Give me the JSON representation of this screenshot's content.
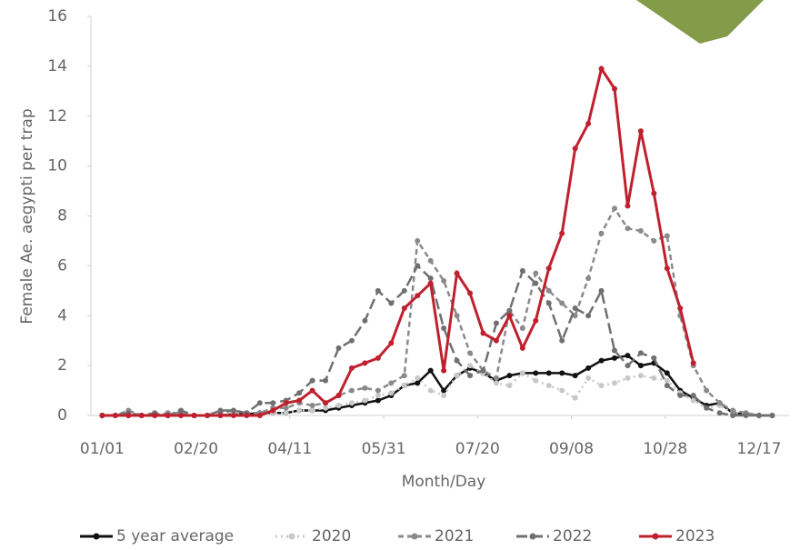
{
  "chart_data": {
    "type": "line",
    "x_label": "Month/Day",
    "y_label": "Female Ae. aegypti per trap",
    "x": [
      0,
      7,
      14,
      21,
      28,
      35,
      42,
      49,
      56,
      63,
      70,
      77,
      84,
      91,
      98,
      105,
      112,
      119,
      126,
      133,
      140,
      147,
      154,
      161,
      168,
      175,
      182,
      189,
      196,
      203,
      210,
      217,
      224,
      231,
      238,
      245,
      252,
      259,
      266,
      273,
      280,
      287,
      294,
      301,
      308,
      315,
      322,
      329,
      336,
      343,
      350,
      357
    ],
    "xlim": [
      -6,
      366
    ],
    "xticks": [
      {
        "value": 0,
        "label": "01/01"
      },
      {
        "value": 50,
        "label": "02/20"
      },
      {
        "value": 100,
        "label": "04/11"
      },
      {
        "value": 150,
        "label": "05/31"
      },
      {
        "value": 200,
        "label": "07/20"
      },
      {
        "value": 250,
        "label": "09/08"
      },
      {
        "value": 300,
        "label": "10/28"
      },
      {
        "value": 350,
        "label": "12/17"
      }
    ],
    "ylim": [
      0,
      16
    ],
    "yticks": [
      0,
      2,
      4,
      6,
      8,
      10,
      12,
      14,
      16
    ],
    "grid": false,
    "legend": "bottom",
    "series": [
      {
        "name": "5 year average",
        "color": "#111111",
        "dash": "solid",
        "values": [
          0,
          0,
          0,
          0,
          0,
          0,
          0,
          0,
          0,
          0,
          0.05,
          0.05,
          0.1,
          0.1,
          0.1,
          0.2,
          0.2,
          0.2,
          0.3,
          0.4,
          0.5,
          0.6,
          0.8,
          1.2,
          1.3,
          1.8,
          1.0,
          1.6,
          1.9,
          1.7,
          1.4,
          1.6,
          1.7,
          1.7,
          1.7,
          1.7,
          1.6,
          1.9,
          2.2,
          2.3,
          2.4,
          2.0,
          2.1,
          1.7,
          1.0,
          0.7,
          0.4,
          0.5,
          0.1,
          0.05,
          0,
          0
        ]
      },
      {
        "name": "2020",
        "color": "#c8c8c8",
        "dash": "dotted",
        "values": [
          0,
          0,
          0.1,
          0,
          0,
          0.1,
          0.1,
          0,
          0,
          0.1,
          0.1,
          0.1,
          0.1,
          0.1,
          0.1,
          0.2,
          0.2,
          0.3,
          0.4,
          0.5,
          0.6,
          0.8,
          0.9,
          1.2,
          1.5,
          1.0,
          0.8,
          1.6,
          2.0,
          1.7,
          1.3,
          1.2,
          1.7,
          1.4,
          1.2,
          1.0,
          0.7,
          1.5,
          1.2,
          1.3,
          1.5,
          1.6,
          1.5,
          1.4,
          0.9,
          0.6,
          0.3,
          0.4,
          0.1,
          0.1,
          0,
          0
        ]
      },
      {
        "name": "2021",
        "color": "#8a8a8a",
        "dash": "dashed",
        "values": [
          0,
          0,
          0.2,
          0,
          0,
          0.1,
          0.1,
          0,
          0,
          0.1,
          0.2,
          0.1,
          0.1,
          0.3,
          0.3,
          0.5,
          0.4,
          0.5,
          0.8,
          1.0,
          1.1,
          1.0,
          1.3,
          1.6,
          7.0,
          6.2,
          5.4,
          4.0,
          2.5,
          1.8,
          1.5,
          4.2,
          3.5,
          5.7,
          5.0,
          4.5,
          4.0,
          5.5,
          7.3,
          8.3,
          7.5,
          7.4,
          7.0,
          7.2,
          4.0,
          2.0,
          1.0,
          0.5,
          0.2,
          0.1,
          0,
          0
        ]
      },
      {
        "name": "2022",
        "color": "#707070",
        "dash": "longdash",
        "values": [
          0,
          0,
          0.1,
          0,
          0.1,
          0,
          0.2,
          0,
          0,
          0.2,
          0.2,
          0.1,
          0.5,
          0.5,
          0.6,
          0.9,
          1.4,
          1.4,
          2.7,
          3.0,
          3.8,
          5.0,
          4.5,
          5.0,
          6.0,
          5.5,
          3.5,
          2.2,
          1.6,
          1.8,
          3.7,
          4.2,
          5.8,
          5.3,
          4.5,
          3.0,
          4.3,
          4.0,
          5.0,
          2.6,
          2.0,
          2.5,
          2.3,
          1.2,
          0.8,
          0.8,
          0.3,
          0.1,
          0,
          0,
          0,
          0
        ]
      },
      {
        "name": "2023",
        "color": "#c0202e",
        "dash": "solid",
        "values": [
          0,
          0,
          0,
          0,
          0,
          0,
          0,
          0,
          0,
          0,
          0,
          0,
          0,
          0.2,
          0.5,
          0.6,
          1.0,
          0.5,
          0.8,
          1.9,
          2.1,
          2.3,
          2.9,
          4.3,
          4.8,
          5.3,
          1.8,
          5.7,
          4.9,
          3.3,
          3.0,
          4.0,
          2.7,
          3.8,
          5.9,
          7.3,
          10.7,
          11.7,
          13.9,
          13.1,
          8.4,
          11.4,
          8.9,
          5.9,
          4.3,
          2.1,
          null,
          null,
          null,
          null,
          null,
          null
        ]
      }
    ]
  }
}
